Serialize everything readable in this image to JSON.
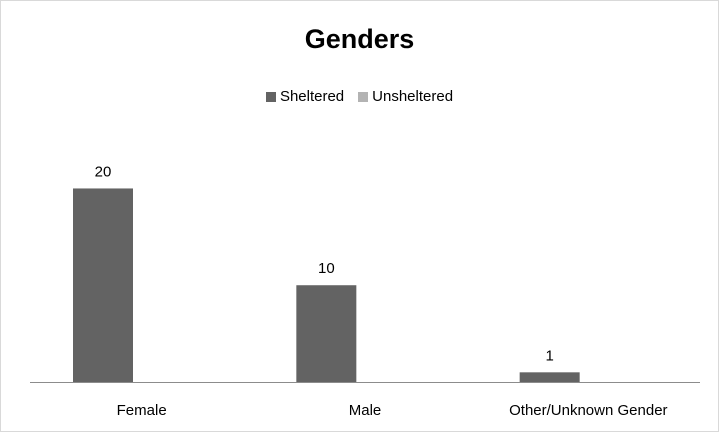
{
  "chart_data": {
    "type": "bar",
    "title": "Genders",
    "categories": [
      "Female",
      "Male",
      "Other/Unknown Gender"
    ],
    "series": [
      {
        "name": "Sheltered",
        "values": [
          20,
          10,
          1
        ],
        "color": "#636363"
      },
      {
        "name": "Unsheltered",
        "values": [
          0,
          0,
          0
        ],
        "color": "#b3b3b3"
      }
    ],
    "data_labels": [
      "20",
      "10",
      "1"
    ],
    "ylim": [
      0,
      31
    ],
    "grid": false,
    "legend_position": "top"
  }
}
